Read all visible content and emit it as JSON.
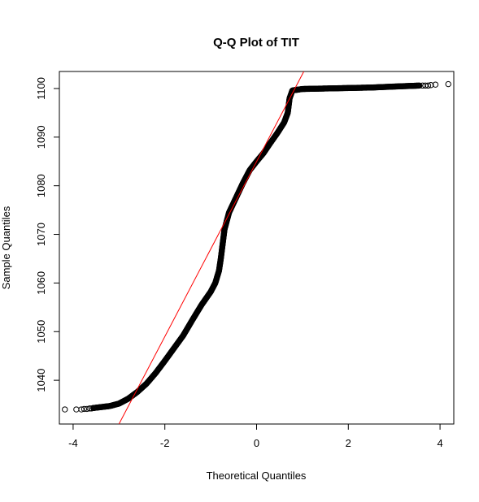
{
  "chart_data": {
    "type": "scatter",
    "title": "Q-Q Plot of TIT",
    "xlabel": "Theoretical Quantiles",
    "ylabel": "Sample Quantiles",
    "xlim": [
      -4.3,
      4.3
    ],
    "ylim": [
      1031,
      1103.5
    ],
    "x_ticks": [
      -4,
      -2,
      0,
      2,
      4
    ],
    "x_tick_labels": [
      "-4",
      "-2",
      "0",
      "2",
      "4"
    ],
    "y_ticks": [
      1040,
      1050,
      1060,
      1070,
      1080,
      1090,
      1100
    ],
    "y_tick_labels": [
      "1040",
      "1050",
      "1060",
      "1070",
      "1080",
      "1090",
      "1100"
    ],
    "grid": false,
    "colors": {
      "points": "#000000",
      "reference_line": "#ff0000",
      "axes": "#000000"
    },
    "reference_line": {
      "points": [
        [
          -3.0,
          1031
        ],
        [
          1.03,
          1103.5
        ]
      ]
    },
    "tail_points": [
      [
        -4.18,
        1034.0
      ],
      [
        -3.93,
        1034.0
      ],
      [
        -3.82,
        1034.0
      ],
      [
        -3.76,
        1034.1
      ],
      [
        -3.7,
        1034.1
      ],
      [
        -3.64,
        1034.2
      ],
      [
        -3.6,
        1034.2
      ],
      [
        -3.56,
        1034.3
      ],
      [
        3.62,
        1100.6
      ],
      [
        3.68,
        1100.6
      ],
      [
        3.74,
        1100.6
      ],
      [
        3.8,
        1100.7
      ],
      [
        3.9,
        1100.8
      ],
      [
        4.18,
        1100.9
      ]
    ],
    "curve": [
      [
        -3.55,
        1034.3
      ],
      [
        -3.2,
        1034.7
      ],
      [
        -3.0,
        1035.2
      ],
      [
        -2.8,
        1036.2
      ],
      [
        -2.6,
        1037.6
      ],
      [
        -2.4,
        1039.3
      ],
      [
        -2.2,
        1041.5
      ],
      [
        -2.0,
        1044.0
      ],
      [
        -1.8,
        1046.6
      ],
      [
        -1.6,
        1049.2
      ],
      [
        -1.4,
        1052.4
      ],
      [
        -1.2,
        1055.5
      ],
      [
        -1.0,
        1058.2
      ],
      [
        -0.9,
        1060.0
      ],
      [
        -0.82,
        1062.5
      ],
      [
        -0.78,
        1065.0
      ],
      [
        -0.74,
        1068.0
      ],
      [
        -0.7,
        1071.0
      ],
      [
        -0.6,
        1074.5
      ],
      [
        -0.45,
        1077.5
      ],
      [
        -0.3,
        1080.5
      ],
      [
        -0.15,
        1083.2
      ],
      [
        0.0,
        1085.0
      ],
      [
        0.15,
        1086.7
      ],
      [
        0.3,
        1088.8
      ],
      [
        0.45,
        1090.8
      ],
      [
        0.6,
        1093.0
      ],
      [
        0.68,
        1095.0
      ],
      [
        0.72,
        1098.0
      ],
      [
        0.78,
        1099.6
      ],
      [
        1.0,
        1099.9
      ],
      [
        1.5,
        1100.0
      ],
      [
        2.0,
        1100.1
      ],
      [
        2.5,
        1100.2
      ],
      [
        3.0,
        1100.4
      ],
      [
        3.55,
        1100.6
      ]
    ]
  }
}
